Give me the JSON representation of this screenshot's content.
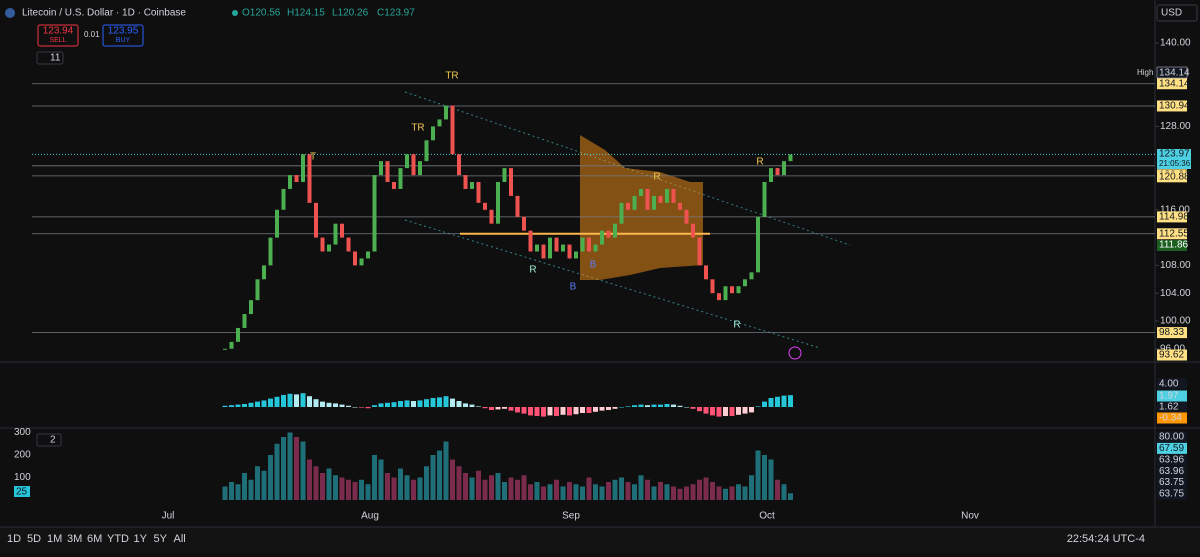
{
  "header": {
    "symbol": "Litecoin / U.S. Dollar · 1D · Coinbase",
    "ohlc": [
      "O120.56",
      "H124.15",
      "L120.26",
      "C123.97"
    ]
  },
  "trade": {
    "sell_price": "123.94",
    "sell": "SELL",
    "spread": "0.01",
    "buy_price": "123.95",
    "buy": "BUY"
  },
  "indicator_count": "11",
  "currency": "USD",
  "price_chart": {
    "type": "candlestick",
    "closes": [
      96,
      97,
      99,
      101,
      103,
      106,
      108,
      112,
      116,
      119,
      121,
      120,
      124,
      117,
      112,
      110,
      111,
      114,
      112,
      110,
      108,
      109,
      110,
      121,
      123,
      120,
      119,
      122,
      124,
      121,
      123,
      126,
      128,
      129,
      131,
      124,
      121,
      119,
      120,
      117,
      116,
      114,
      120,
      122,
      118,
      115,
      113,
      110,
      111,
      109,
      112,
      110,
      111,
      109,
      110,
      112,
      110,
      111,
      113,
      112,
      114,
      117,
      116,
      118,
      119,
      116,
      118,
      117,
      119,
      117,
      116,
      114,
      112,
      108,
      106,
      104,
      103,
      105,
      104,
      105,
      106,
      107,
      115,
      120,
      122,
      121,
      123,
      123.97
    ],
    "ylim": [
      92,
      142
    ],
    "yticks": [
      {
        "value": 140,
        "label": "140.00"
      },
      {
        "value": 128,
        "label": "128.00"
      },
      {
        "value": 116,
        "label": "116.00"
      },
      {
        "value": 108,
        "label": "108.00"
      },
      {
        "value": 104,
        "label": "104.00"
      },
      {
        "value": 100,
        "label": "100.00"
      },
      {
        "value": 96,
        "label": "96.00"
      }
    ],
    "levels": [
      {
        "value": 134.14,
        "label": "134.14"
      },
      {
        "value": 130.94,
        "label": "130.94"
      },
      {
        "value": 122.33,
        "label": "122.33"
      },
      {
        "value": 120.88,
        "label": "120.88"
      },
      {
        "value": 114.98,
        "label": "114.98"
      },
      {
        "value": 112.55,
        "label": "112.55"
      },
      {
        "value": 98.33,
        "label": "98.33"
      },
      {
        "value": 93.62,
        "label": "93.62"
      }
    ],
    "last_price": {
      "value": 123.97,
      "label": "123.97",
      "countdown": "21:05:36"
    },
    "trail": {
      "value": 111.86,
      "label": "111.86"
    },
    "high": {
      "text": "High",
      "value": 134.14,
      "label": "134.14"
    },
    "markers": [
      "T",
      "TR",
      "TR",
      "R",
      "R",
      "R",
      "B",
      "B",
      "R"
    ]
  },
  "macd": {
    "histogram": [
      0.2,
      0.3,
      0.4,
      0.5,
      0.7,
      0.9,
      1.1,
      1.4,
      1.7,
      2.0,
      2.2,
      2.1,
      2.3,
      1.8,
      1.3,
      0.9,
      0.7,
      0.6,
      0.4,
      0.2,
      0.0,
      -0.1,
      -0.2,
      0.3,
      0.6,
      0.7,
      0.8,
      1.0,
      1.1,
      1.0,
      1.1,
      1.3,
      1.5,
      1.6,
      1.8,
      1.4,
      1.0,
      0.6,
      0.4,
      0.1,
      -0.2,
      -0.5,
      -0.4,
      -0.3,
      -0.6,
      -0.9,
      -1.1,
      -1.4,
      -1.5,
      -1.6,
      -1.4,
      -1.5,
      -1.3,
      -1.4,
      -1.2,
      -1.0,
      -1.0,
      -0.8,
      -0.6,
      -0.5,
      -0.3,
      0.0,
      0.1,
      0.3,
      0.4,
      0.3,
      0.4,
      0.4,
      0.5,
      0.4,
      0.2,
      0.0,
      -0.3,
      -0.7,
      -1.1,
      -1.4,
      -1.6,
      -1.5,
      -1.5,
      -1.3,
      -1.1,
      -0.9,
      0.1,
      0.9,
      1.5,
      1.7,
      1.9,
      1.97
    ],
    "labels": [
      {
        "value": 4,
        "label": "4.00"
      },
      {
        "value": 1.97,
        "label": "1.97"
      },
      {
        "value": 1.62,
        "label": "1.62"
      },
      {
        "value": -0.34,
        "label": "-0.34"
      }
    ]
  },
  "volume": {
    "values": [
      60,
      80,
      70,
      120,
      90,
      150,
      130,
      200,
      250,
      280,
      300,
      280,
      260,
      180,
      150,
      120,
      140,
      110,
      100,
      90,
      80,
      90,
      70,
      200,
      180,
      120,
      100,
      140,
      110,
      90,
      100,
      150,
      200,
      220,
      260,
      180,
      150,
      120,
      100,
      130,
      90,
      110,
      120,
      80,
      100,
      90,
      110,
      70,
      80,
      60,
      70,
      90,
      60,
      80,
      70,
      60,
      100,
      70,
      60,
      80,
      90,
      100,
      80,
      70,
      110,
      90,
      60,
      80,
      70,
      60,
      50,
      60,
      70,
      90,
      100,
      80,
      60,
      50,
      60,
      70,
      60,
      110,
      220,
      200,
      180,
      90,
      70,
      30
    ],
    "yticks": [
      300,
      200,
      100
    ],
    "tag": "25",
    "indicator_count": "2",
    "right_labels": [
      "80.00",
      "67.59",
      "63.96",
      "63.96",
      "63.75",
      "63.75"
    ]
  },
  "time_axis": [
    "Jul",
    "Aug",
    "Sep",
    "Oct",
    "Nov"
  ],
  "timeframes": [
    "1D",
    "5D",
    "1M",
    "3M",
    "6M",
    "YTD",
    "1Y",
    "5Y",
    "All"
  ],
  "clock": "22:54:24 UTC-4"
}
